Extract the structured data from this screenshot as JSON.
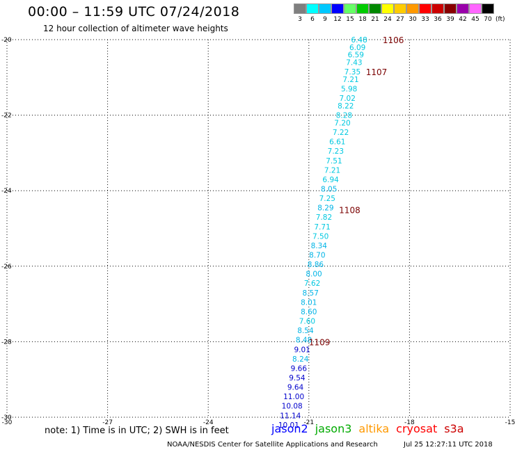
{
  "header": {
    "title": "00:00 – 11:59 UTC 07/24/2018",
    "subtitle": "12 hour collection of altimeter wave heights"
  },
  "legend": {
    "unit": "(ft)",
    "bins": [
      {
        "label": "3",
        "color": "#7f7f7f"
      },
      {
        "label": "6",
        "color": "#00ffff"
      },
      {
        "label": "9",
        "color": "#00c8ff"
      },
      {
        "label": "12",
        "color": "#0000ff"
      },
      {
        "label": "15",
        "color": "#66ff66"
      },
      {
        "label": "18",
        "color": "#00cc00"
      },
      {
        "label": "21",
        "color": "#008800"
      },
      {
        "label": "24",
        "color": "#ffff00"
      },
      {
        "label": "27",
        "color": "#ffcc00"
      },
      {
        "label": "30",
        "color": "#ff9900"
      },
      {
        "label": "33",
        "color": "#ff0000"
      },
      {
        "label": "36",
        "color": "#cc0000"
      },
      {
        "label": "39",
        "color": "#880000"
      },
      {
        "label": "42",
        "color": "#9900aa"
      },
      {
        "label": "45",
        "color": "#ff66ff"
      },
      {
        "label": "70",
        "color": "#000000"
      }
    ]
  },
  "chart_data": {
    "type": "scatter",
    "title": "00:00 – 11:59 UTC 07/24/2018",
    "subtitle": "12 hour collection of altimeter wave heights",
    "xlim": [
      -30,
      -15
    ],
    "ylim": [
      -30,
      -20
    ],
    "x_ticks": [
      "-30",
      "-27",
      "-24",
      "-21",
      "-18",
      "-15"
    ],
    "y_ticks": [
      "-20",
      "-22",
      "-24",
      "-26",
      "-28",
      "-30"
    ],
    "grid": true,
    "points": [
      {
        "lon": -19.5,
        "lat": -20.0,
        "value": "6.48",
        "color": "#00c8e0"
      },
      {
        "lon": -19.55,
        "lat": -20.2,
        "value": "6.09",
        "color": "#00c8e0"
      },
      {
        "lon": -19.6,
        "lat": -20.4,
        "value": "6.59",
        "color": "#00c8e0"
      },
      {
        "lon": -19.65,
        "lat": -20.6,
        "value": "7.43",
        "color": "#00c8e0"
      },
      {
        "lon": -19.7,
        "lat": -20.85,
        "value": "7.35",
        "color": "#00c8e0"
      },
      {
        "lon": -19.75,
        "lat": -21.05,
        "value": "7.21",
        "color": "#00c8e0"
      },
      {
        "lon": -19.8,
        "lat": -21.3,
        "value": "5.98",
        "color": "#00c8e0"
      },
      {
        "lon": -19.85,
        "lat": -21.55,
        "value": "7.02",
        "color": "#00c8e0"
      },
      {
        "lon": -19.9,
        "lat": -21.75,
        "value": "8.22",
        "color": "#00c8e0"
      },
      {
        "lon": -19.95,
        "lat": -22.0,
        "value": "8.28",
        "color": "#00c8e0"
      },
      {
        "lon": -20.0,
        "lat": -22.2,
        "value": "7.20",
        "color": "#00c8e0"
      },
      {
        "lon": -20.05,
        "lat": -22.45,
        "value": "7.22",
        "color": "#00c8e0"
      },
      {
        "lon": -20.15,
        "lat": -22.7,
        "value": "6.61",
        "color": "#00c8e0"
      },
      {
        "lon": -20.2,
        "lat": -22.95,
        "value": "7.23",
        "color": "#00c8e0"
      },
      {
        "lon": -20.25,
        "lat": -23.2,
        "value": "7.51",
        "color": "#00c8e0"
      },
      {
        "lon": -20.3,
        "lat": -23.45,
        "value": "7.21",
        "color": "#00c8e0"
      },
      {
        "lon": -20.35,
        "lat": -23.7,
        "value": "6.94",
        "color": "#00c8e0"
      },
      {
        "lon": -20.4,
        "lat": -23.95,
        "value": "8.05",
        "color": "#00b4e6"
      },
      {
        "lon": -20.45,
        "lat": -24.2,
        "value": "7.25",
        "color": "#00c8e0"
      },
      {
        "lon": -20.5,
        "lat": -24.45,
        "value": "8.29",
        "color": "#00b4e6"
      },
      {
        "lon": -20.55,
        "lat": -24.7,
        "value": "7.82",
        "color": "#00c8e0"
      },
      {
        "lon": -20.6,
        "lat": -24.95,
        "value": "7.71",
        "color": "#00c8e0"
      },
      {
        "lon": -20.65,
        "lat": -25.2,
        "value": "7.50",
        "color": "#00c8e0"
      },
      {
        "lon": -20.7,
        "lat": -25.45,
        "value": "8.34",
        "color": "#00b4e6"
      },
      {
        "lon": -20.75,
        "lat": -25.7,
        "value": "8.70",
        "color": "#00b4e6"
      },
      {
        "lon": -20.8,
        "lat": -25.95,
        "value": "8.86",
        "color": "#00b4e6"
      },
      {
        "lon": -20.85,
        "lat": -26.2,
        "value": "8.00",
        "color": "#00b4e6"
      },
      {
        "lon": -20.9,
        "lat": -26.45,
        "value": "7.62",
        "color": "#00c8e0"
      },
      {
        "lon": -20.95,
        "lat": -26.7,
        "value": "8.57",
        "color": "#00b4e6"
      },
      {
        "lon": -21.0,
        "lat": -26.95,
        "value": "8.01",
        "color": "#00b4e6"
      },
      {
        "lon": -21.0,
        "lat": -27.2,
        "value": "8.60",
        "color": "#00b4e6"
      },
      {
        "lon": -21.05,
        "lat": -27.45,
        "value": "7.60",
        "color": "#00c8e0"
      },
      {
        "lon": -21.1,
        "lat": -27.7,
        "value": "8.54",
        "color": "#00b4e6"
      },
      {
        "lon": -21.15,
        "lat": -27.95,
        "value": "8.48",
        "color": "#00b4e6"
      },
      {
        "lon": -21.2,
        "lat": -28.2,
        "value": "9.01",
        "color": "#0000cc"
      },
      {
        "lon": -21.25,
        "lat": -28.45,
        "value": "8.24",
        "color": "#00b4e6"
      },
      {
        "lon": -21.3,
        "lat": -28.7,
        "value": "9.66",
        "color": "#0000cc"
      },
      {
        "lon": -21.35,
        "lat": -28.95,
        "value": "9.54",
        "color": "#0000cc"
      },
      {
        "lon": -21.4,
        "lat": -29.2,
        "value": "9.64",
        "color": "#0000cc"
      },
      {
        "lon": -21.45,
        "lat": -29.45,
        "value": "11.00",
        "color": "#0000cc"
      },
      {
        "lon": -21.5,
        "lat": -29.7,
        "value": "10.08",
        "color": "#0000cc"
      },
      {
        "lon": -21.55,
        "lat": -29.95,
        "value": "11.14",
        "color": "#0000cc"
      },
      {
        "lon": -21.6,
        "lat": -30.2,
        "value": "10.01",
        "color": "#0000cc"
      }
    ],
    "time_labels": [
      {
        "lon": -18.8,
        "lat": -20.0,
        "text": "1106"
      },
      {
        "lon": -19.3,
        "lat": -20.85,
        "text": "1107"
      },
      {
        "lon": -20.1,
        "lat": -24.5,
        "text": "1108"
      },
      {
        "lon": -21.0,
        "lat": -28.0,
        "text": "1109"
      }
    ],
    "satellites": [
      {
        "name": "jason2",
        "color": "#0000ff"
      },
      {
        "name": "jason3",
        "color": "#00aa00"
      },
      {
        "name": "altika",
        "color": "#ff9900"
      },
      {
        "name": "cryosat",
        "color": "#ff0000"
      },
      {
        "name": "s3a",
        "color": "#cc0000"
      }
    ]
  },
  "footer": {
    "note": "note: 1) Time is in UTC; 2) SWH is in feet",
    "credit": "NOAA/NESDIS Center for Satellite Applications and Research",
    "timestamp": "Jul 25 12:27:11 UTC 2018"
  }
}
